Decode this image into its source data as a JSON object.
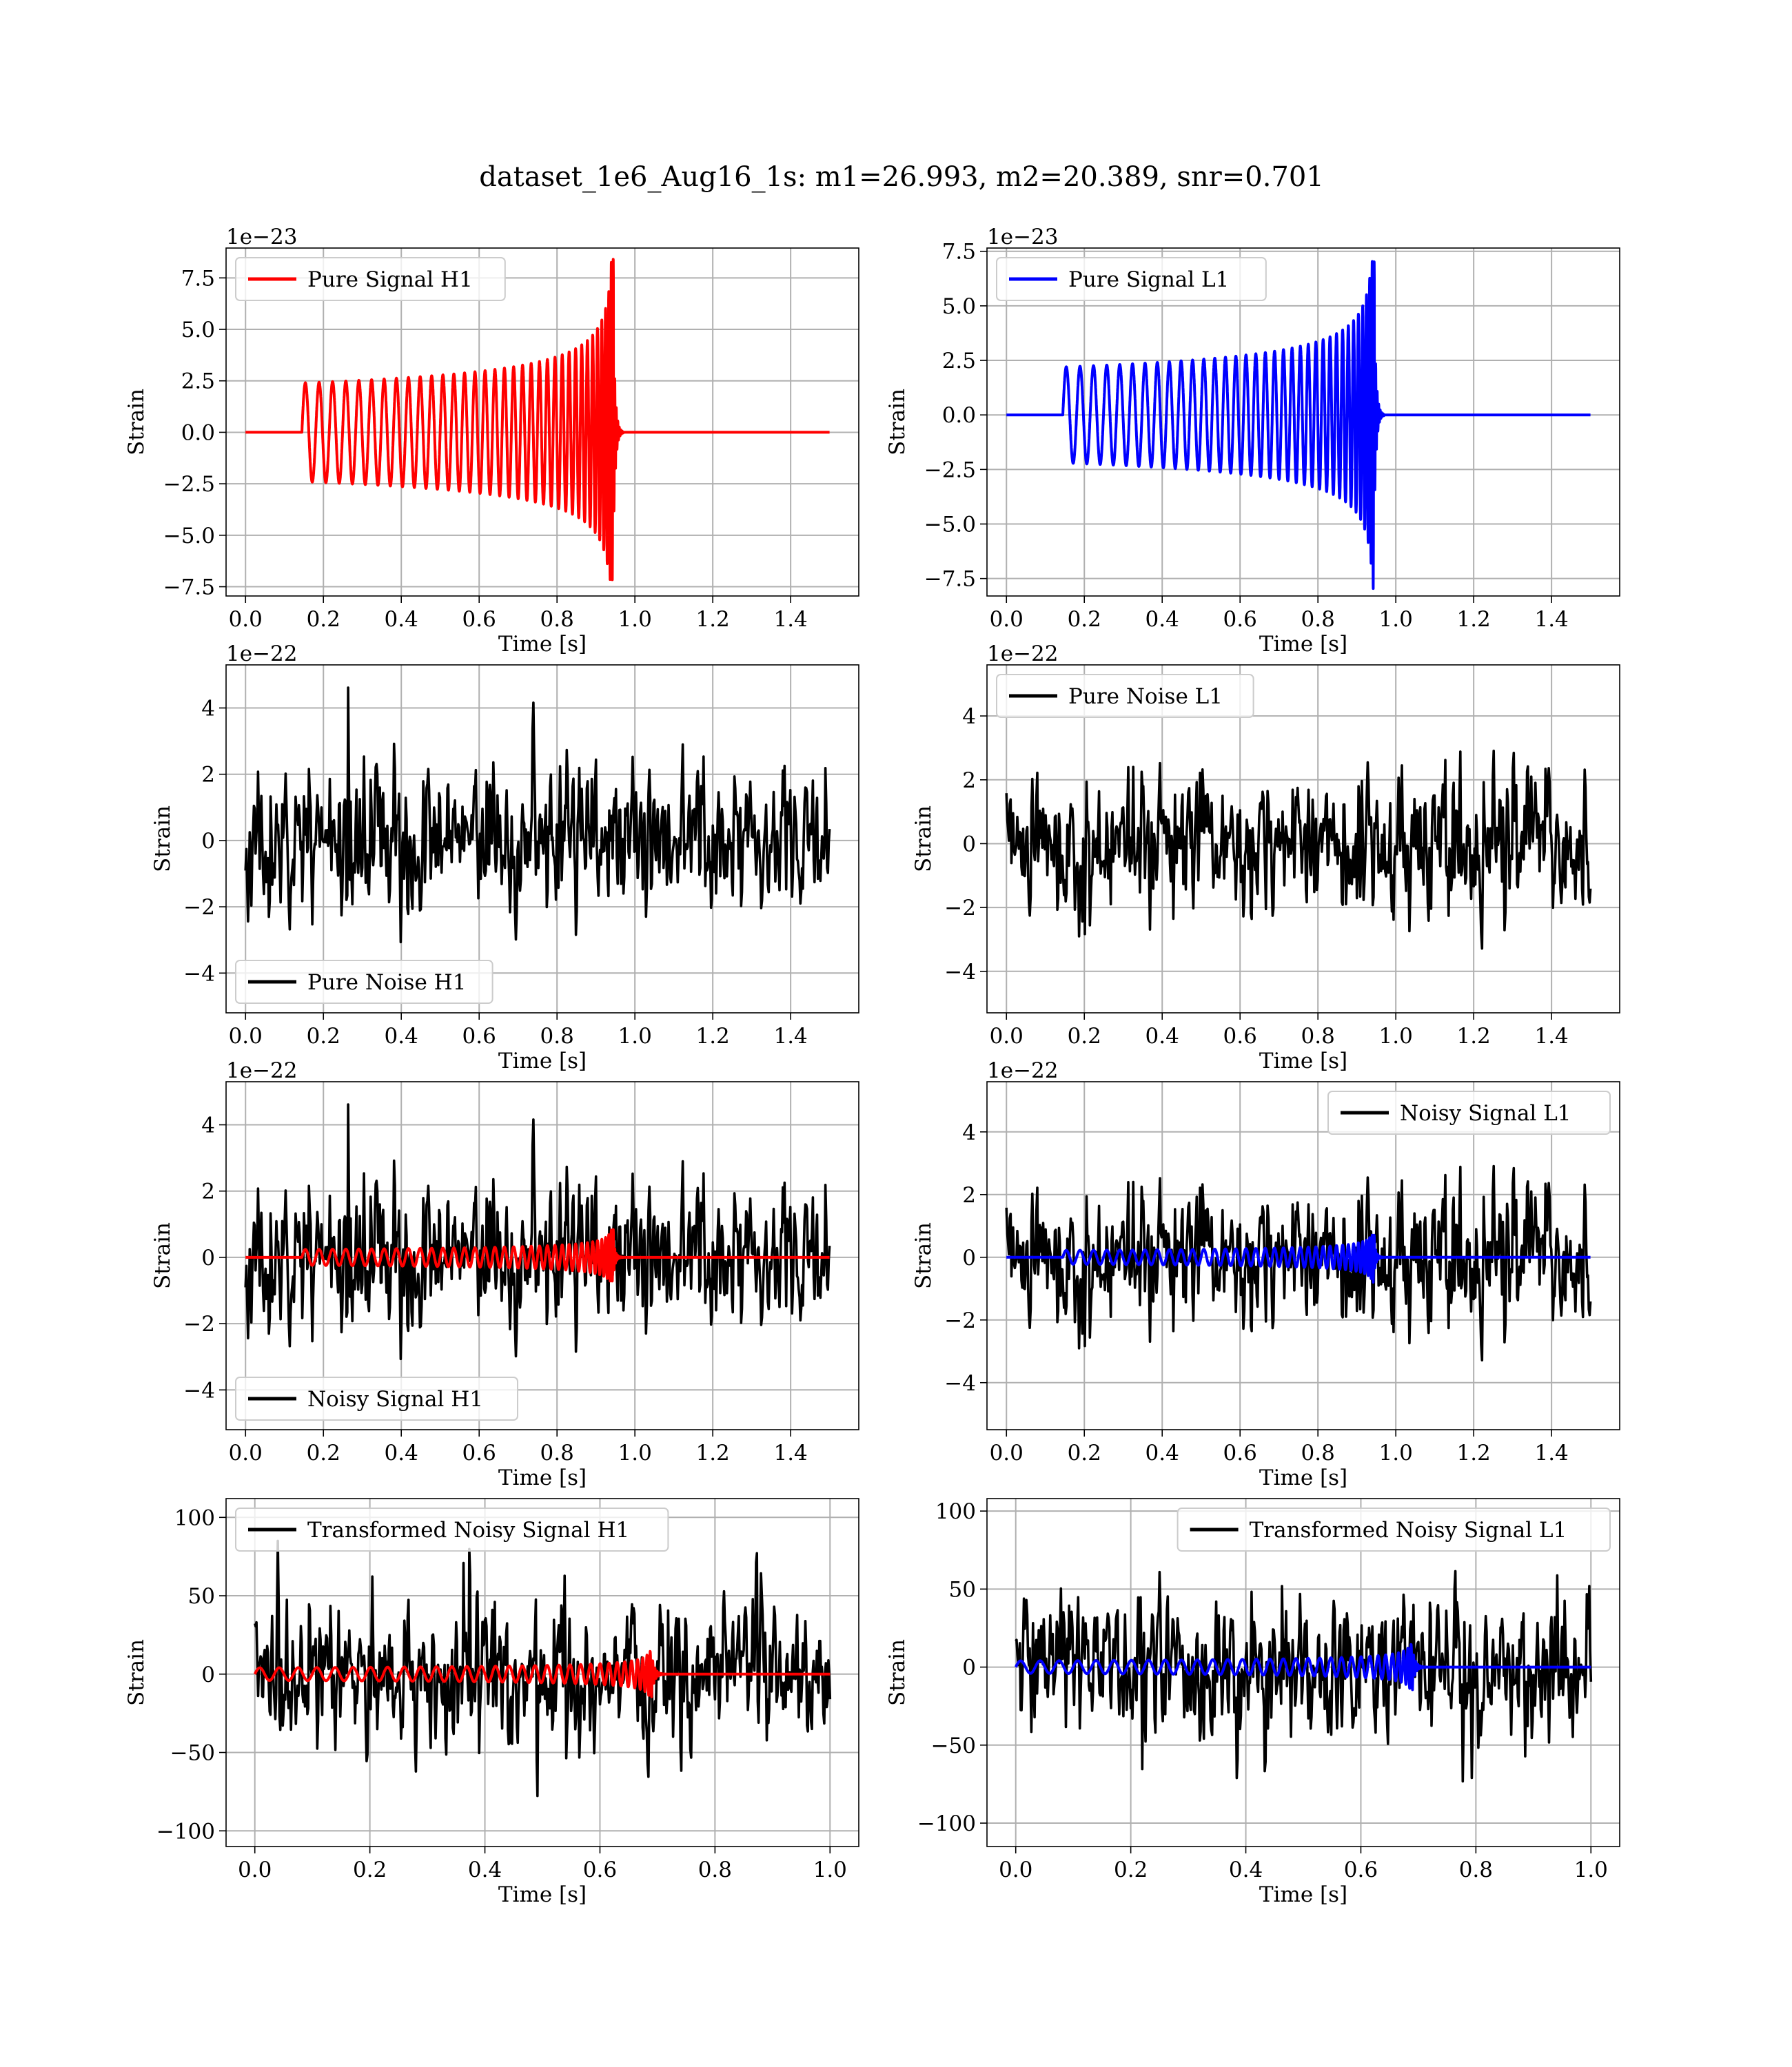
{
  "figure": {
    "title": "dataset_1e6_Aug16_1s: m1=26.993, m2=20.389, snr=0.701"
  },
  "chart_data": [
    {
      "type": "line",
      "ylabel": "Strain",
      "xlabel": "Time [s]",
      "offset_label": "1e−23",
      "xlim": [
        -0.05,
        1.575
      ],
      "ylim": [
        -7.95,
        8.95
      ],
      "xticks": [
        0.0,
        0.2,
        0.4,
        0.6,
        0.8,
        1.0,
        1.2,
        1.4
      ],
      "xtick_labels": [
        "0.0",
        "0.2",
        "0.4",
        "0.6",
        "0.8",
        "1.0",
        "1.2",
        "1.4"
      ],
      "yticks": [
        -7.5,
        -5.0,
        -2.5,
        0.0,
        2.5,
        5.0,
        7.5
      ],
      "ytick_labels": [
        "−7.5",
        "−5.0",
        "−2.5",
        "0.0",
        "2.5",
        "5.0",
        "7.5"
      ],
      "grid": true,
      "legend": "top-left",
      "series": [
        {
          "name": "Pure Signal H1",
          "color": "#ff0000",
          "kind": "chirp",
          "x_range": [
            0.0,
            1.5
          ],
          "t_start": 0.145,
          "t_merge": 0.945,
          "amp_start": 2.4,
          "amp_peak": 8.5,
          "amp_min": -7.2,
          "ringdown_amp": 5.0
        }
      ]
    },
    {
      "type": "line",
      "ylabel": "Strain",
      "xlabel": "Time [s]",
      "offset_label": "1e−23",
      "xlim": [
        -0.05,
        1.575
      ],
      "ylim": [
        -8.3,
        7.65
      ],
      "xticks": [
        0.0,
        0.2,
        0.4,
        0.6,
        0.8,
        1.0,
        1.2,
        1.4
      ],
      "xtick_labels": [
        "0.0",
        "0.2",
        "0.4",
        "0.6",
        "0.8",
        "1.0",
        "1.2",
        "1.4"
      ],
      "yticks": [
        -7.5,
        -5.0,
        -2.5,
        0.0,
        2.5,
        5.0,
        7.5
      ],
      "ytick_labels": [
        "−7.5",
        "−5.0",
        "−2.5",
        "0.0",
        "2.5",
        "5.0",
        "7.5"
      ],
      "grid": true,
      "legend": "top-left",
      "series": [
        {
          "name": "Pure Signal L1",
          "color": "#0000ff",
          "kind": "chirp",
          "x_range": [
            0.0,
            1.5
          ],
          "t_start": 0.145,
          "t_merge": 0.945,
          "amp_start": 2.2,
          "amp_peak": 7.1,
          "amp_min": -8.0,
          "ringdown_amp": 4.5
        }
      ]
    },
    {
      "type": "line",
      "ylabel": "Strain",
      "xlabel": "Time [s]",
      "offset_label": "1e−22",
      "xlim": [
        -0.05,
        1.575
      ],
      "ylim": [
        -5.2,
        5.3
      ],
      "xticks": [
        0.0,
        0.2,
        0.4,
        0.6,
        0.8,
        1.0,
        1.2,
        1.4
      ],
      "xtick_labels": [
        "0.0",
        "0.2",
        "0.4",
        "0.6",
        "0.8",
        "1.0",
        "1.2",
        "1.4"
      ],
      "yticks": [
        -4,
        -2,
        0,
        2,
        4
      ],
      "ytick_labels": [
        "−4",
        "−2",
        "0",
        "2",
        "4"
      ],
      "grid": true,
      "legend": "bottom-left",
      "series": [
        {
          "name": "Pure Noise H1",
          "color": "#000000",
          "kind": "noise",
          "x_range": [
            0.0,
            1.5
          ],
          "sigma": 1.45,
          "seed": 11,
          "n": 700
        }
      ]
    },
    {
      "type": "line",
      "ylabel": "Strain",
      "xlabel": "Time [s]",
      "offset_label": "1e−22",
      "xlim": [
        -0.05,
        1.575
      ],
      "ylim": [
        -5.3,
        5.6
      ],
      "xticks": [
        0.0,
        0.2,
        0.4,
        0.6,
        0.8,
        1.0,
        1.2,
        1.4
      ],
      "xtick_labels": [
        "0.0",
        "0.2",
        "0.4",
        "0.6",
        "0.8",
        "1.0",
        "1.2",
        "1.4"
      ],
      "yticks": [
        -4,
        -2,
        0,
        2,
        4
      ],
      "ytick_labels": [
        "−4",
        "−2",
        "0",
        "2",
        "4"
      ],
      "grid": true,
      "legend": "top-left",
      "series": [
        {
          "name": "Pure Noise L1",
          "color": "#000000",
          "kind": "noise",
          "x_range": [
            0.0,
            1.5
          ],
          "sigma": 1.45,
          "seed": 23,
          "n": 700
        }
      ]
    },
    {
      "type": "line",
      "ylabel": "Strain",
      "xlabel": "Time [s]",
      "offset_label": "1e−22",
      "xlim": [
        -0.05,
        1.575
      ],
      "ylim": [
        -5.2,
        5.3
      ],
      "xticks": [
        0.0,
        0.2,
        0.4,
        0.6,
        0.8,
        1.0,
        1.2,
        1.4
      ],
      "xtick_labels": [
        "0.0",
        "0.2",
        "0.4",
        "0.6",
        "0.8",
        "1.0",
        "1.2",
        "1.4"
      ],
      "yticks": [
        -4,
        -2,
        0,
        2,
        4
      ],
      "ytick_labels": [
        "−4",
        "−2",
        "0",
        "2",
        "4"
      ],
      "grid": true,
      "legend": "bottom-left",
      "series": [
        {
          "name": "Noisy Signal H1",
          "color": "#000000",
          "kind": "noise",
          "x_range": [
            0.0,
            1.5
          ],
          "sigma": 1.45,
          "seed": 11,
          "n": 700
        },
        {
          "name": "",
          "color": "#ff0000",
          "kind": "chirp",
          "x_range": [
            0.0,
            1.5
          ],
          "t_start": 0.145,
          "t_merge": 0.945,
          "amp_start": 0.24,
          "amp_peak": 0.85,
          "amp_min": -0.72,
          "ringdown_amp": 0.5
        }
      ]
    },
    {
      "type": "line",
      "ylabel": "Strain",
      "xlabel": "Time [s]",
      "offset_label": "1e−22",
      "xlim": [
        -0.05,
        1.575
      ],
      "ylim": [
        -5.5,
        5.6
      ],
      "xticks": [
        0.0,
        0.2,
        0.4,
        0.6,
        0.8,
        1.0,
        1.2,
        1.4
      ],
      "xtick_labels": [
        "0.0",
        "0.2",
        "0.4",
        "0.6",
        "0.8",
        "1.0",
        "1.2",
        "1.4"
      ],
      "yticks": [
        -4,
        -2,
        0,
        2,
        4
      ],
      "ytick_labels": [
        "−4",
        "−2",
        "0",
        "2",
        "4"
      ],
      "grid": true,
      "legend": "top-right",
      "series": [
        {
          "name": "Noisy Signal L1",
          "color": "#000000",
          "kind": "noise",
          "x_range": [
            0.0,
            1.5
          ],
          "sigma": 1.45,
          "seed": 23,
          "n": 700
        },
        {
          "name": "",
          "color": "#0000ff",
          "kind": "chirp",
          "x_range": [
            0.0,
            1.5
          ],
          "t_start": 0.145,
          "t_merge": 0.945,
          "amp_start": 0.22,
          "amp_peak": 0.71,
          "amp_min": -0.8,
          "ringdown_amp": 0.45
        }
      ]
    },
    {
      "type": "line",
      "ylabel": "Strain",
      "xlabel": "Time [s]",
      "offset_label": "",
      "xlim": [
        -0.05,
        1.05
      ],
      "ylim": [
        -110,
        112
      ],
      "xticks": [
        0.0,
        0.2,
        0.4,
        0.6,
        0.8,
        1.0
      ],
      "xtick_labels": [
        "0.0",
        "0.2",
        "0.4",
        "0.6",
        "0.8",
        "1.0"
      ],
      "yticks": [
        -100,
        -50,
        0,
        50,
        100
      ],
      "ytick_labels": [
        "−100",
        "−50",
        "0",
        "50",
        "100"
      ],
      "grid": true,
      "legend": "top-left",
      "series": [
        {
          "name": "Transformed Noisy Signal H1",
          "color": "#000000",
          "kind": "noise",
          "x_range": [
            0.0,
            1.0
          ],
          "sigma": 30,
          "seed": 37,
          "n": 700
        },
        {
          "name": "",
          "color": "#ff0000",
          "kind": "chirp",
          "x_range": [
            0.0,
            1.0
          ],
          "t_start": 0.0,
          "t_merge": 0.69,
          "amp_start": 4.0,
          "amp_peak": 22.0,
          "amp_min": -20.0,
          "ringdown_amp": 12.0
        }
      ]
    },
    {
      "type": "line",
      "ylabel": "Strain",
      "xlabel": "Time [s]",
      "offset_label": "",
      "xlim": [
        -0.05,
        1.05
      ],
      "ylim": [
        -115,
        108
      ],
      "xticks": [
        0.0,
        0.2,
        0.4,
        0.6,
        0.8,
        1.0
      ],
      "xtick_labels": [
        "0.0",
        "0.2",
        "0.4",
        "0.6",
        "0.8",
        "1.0"
      ],
      "yticks": [
        -100,
        -50,
        0,
        50,
        100
      ],
      "ytick_labels": [
        "−100",
        "−50",
        "0",
        "50",
        "100"
      ],
      "grid": true,
      "legend": "top-right",
      "series": [
        {
          "name": "Transformed Noisy Signal L1",
          "color": "#000000",
          "kind": "noise",
          "x_range": [
            0.0,
            1.0
          ],
          "sigma": 30,
          "seed": 53,
          "n": 700
        },
        {
          "name": "",
          "color": "#0000ff",
          "kind": "chirp",
          "x_range": [
            0.0,
            1.0
          ],
          "t_start": 0.0,
          "t_merge": 0.69,
          "amp_start": 4.0,
          "amp_peak": 20.0,
          "amp_min": -22.0,
          "ringdown_amp": 11.0
        }
      ]
    }
  ]
}
